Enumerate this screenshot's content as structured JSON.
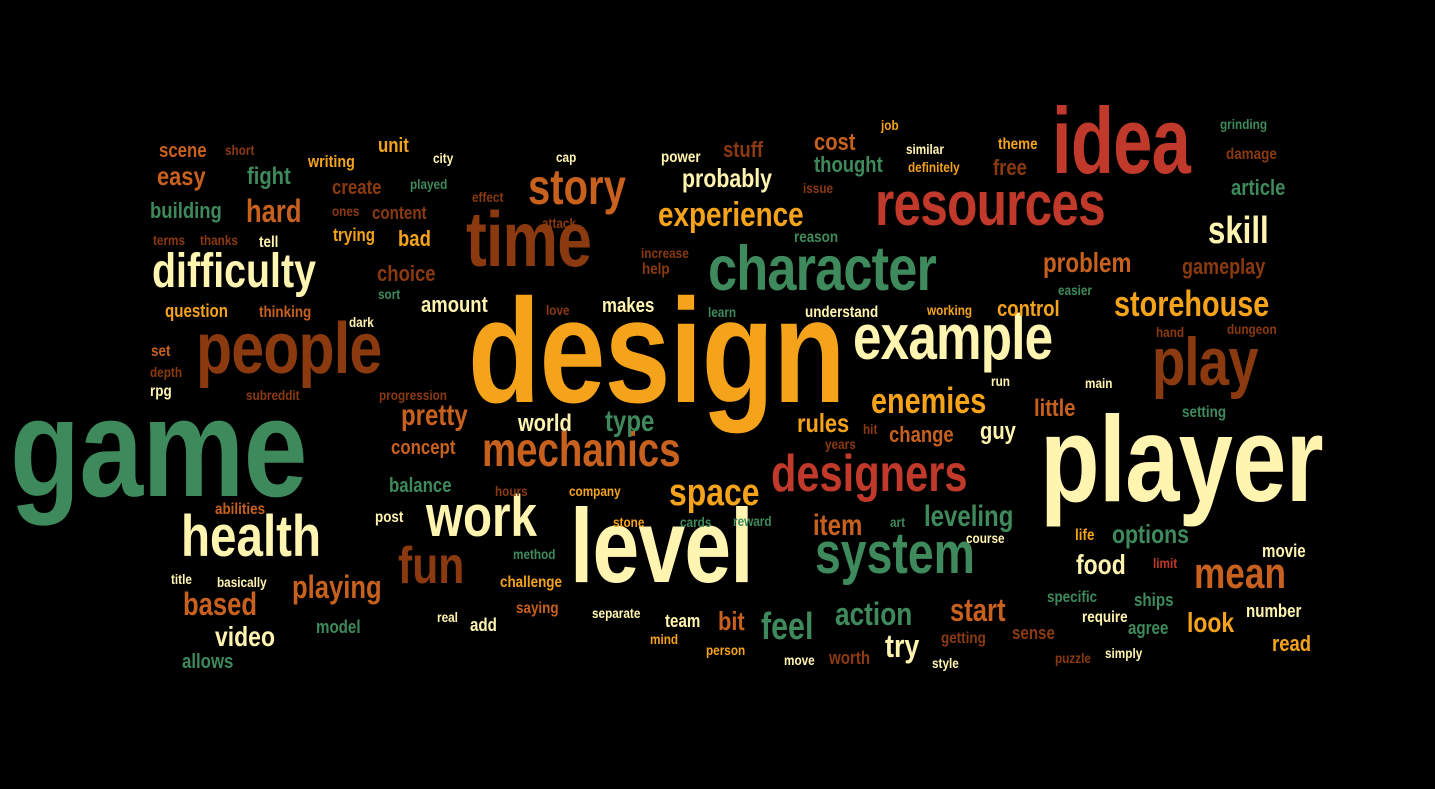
{
  "colors": {
    "background": "#000000",
    "cream": "#FFF4B0",
    "orange": "#F5A31A",
    "red": "#C0392B",
    "brown": "#8B3A10",
    "green": "#3F8A5C",
    "rust": "#C8601E"
  },
  "words": [
    {
      "text": "game",
      "color": "green"
    },
    {
      "text": "design",
      "color": "orange"
    },
    {
      "text": "player",
      "color": "cream"
    },
    {
      "text": "level",
      "color": "cream"
    },
    {
      "text": "idea",
      "color": "red"
    },
    {
      "text": "people",
      "color": "brown"
    },
    {
      "text": "time",
      "color": "brown"
    },
    {
      "text": "character",
      "color": "green"
    },
    {
      "text": "resources",
      "color": "red"
    },
    {
      "text": "example",
      "color": "cream"
    },
    {
      "text": "play",
      "color": "brown"
    },
    {
      "text": "system",
      "color": "green"
    },
    {
      "text": "work",
      "color": "cream"
    },
    {
      "text": "health",
      "color": "cream"
    },
    {
      "text": "difficulty",
      "color": "cream"
    },
    {
      "text": "mechanics",
      "color": "rust"
    },
    {
      "text": "designers",
      "color": "red"
    },
    {
      "text": "story",
      "color": "rust"
    },
    {
      "text": "fun",
      "color": "brown"
    },
    {
      "text": "space",
      "color": "orange"
    },
    {
      "text": "mean",
      "color": "rust"
    },
    {
      "text": "storehouse",
      "color": "orange"
    },
    {
      "text": "experience",
      "color": "orange"
    },
    {
      "text": "enemies",
      "color": "orange"
    },
    {
      "text": "skill",
      "color": "cream"
    },
    {
      "text": "based",
      "color": "rust"
    },
    {
      "text": "playing",
      "color": "rust"
    },
    {
      "text": "feel",
      "color": "green"
    },
    {
      "text": "action",
      "color": "green"
    },
    {
      "text": "start",
      "color": "rust"
    },
    {
      "text": "problem",
      "color": "rust"
    },
    {
      "text": "video",
      "color": "cream"
    },
    {
      "text": "food",
      "color": "cream"
    },
    {
      "text": "hard",
      "color": "rust"
    },
    {
      "text": "pretty",
      "color": "rust"
    },
    {
      "text": "leveling",
      "color": "green"
    },
    {
      "text": "item",
      "color": "rust"
    },
    {
      "text": "probably",
      "color": "cream"
    },
    {
      "text": "try",
      "color": "cream"
    },
    {
      "text": "look",
      "color": "orange"
    },
    {
      "text": "options",
      "color": "green"
    },
    {
      "text": "little",
      "color": "rust"
    },
    {
      "text": "type",
      "color": "green"
    },
    {
      "text": "world",
      "color": "cream"
    },
    {
      "text": "rules",
      "color": "orange"
    },
    {
      "text": "cost",
      "color": "rust"
    },
    {
      "text": "easy",
      "color": "rust"
    },
    {
      "text": "building",
      "color": "green"
    },
    {
      "text": "fight",
      "color": "green"
    },
    {
      "text": "gameplay",
      "color": "brown"
    },
    {
      "text": "article",
      "color": "green"
    },
    {
      "text": "thought",
      "color": "green"
    },
    {
      "text": "bit",
      "color": "rust"
    },
    {
      "text": "change",
      "color": "rust"
    },
    {
      "text": "control",
      "color": "orange"
    },
    {
      "text": "guy",
      "color": "cream"
    },
    {
      "text": "makes",
      "color": "cream"
    },
    {
      "text": "amount",
      "color": "cream"
    },
    {
      "text": "choice",
      "color": "brown"
    },
    {
      "text": "bad",
      "color": "orange"
    },
    {
      "text": "create",
      "color": "brown"
    },
    {
      "text": "concept",
      "color": "rust"
    },
    {
      "text": "unit",
      "color": "orange"
    },
    {
      "text": "scene",
      "color": "rust"
    },
    {
      "text": "writing",
      "color": "orange"
    },
    {
      "text": "stuff",
      "color": "brown"
    },
    {
      "text": "free",
      "color": "brown"
    },
    {
      "text": "theme",
      "color": "orange"
    },
    {
      "text": "read",
      "color": "orange"
    },
    {
      "text": "movie",
      "color": "cream"
    },
    {
      "text": "balance",
      "color": "green"
    },
    {
      "text": "question",
      "color": "orange"
    },
    {
      "text": "content",
      "color": "brown"
    },
    {
      "text": "trying",
      "color": "orange"
    },
    {
      "text": "allows",
      "color": "green"
    },
    {
      "text": "model",
      "color": "green"
    },
    {
      "text": "add",
      "color": "cream"
    },
    {
      "text": "team",
      "color": "cream"
    },
    {
      "text": "worth",
      "color": "brown"
    },
    {
      "text": "life",
      "color": "orange"
    },
    {
      "text": "ships",
      "color": "green"
    },
    {
      "text": "agree",
      "color": "green"
    },
    {
      "text": "sense",
      "color": "brown"
    },
    {
      "text": "number",
      "color": "cream"
    },
    {
      "text": "reason",
      "color": "green"
    },
    {
      "text": "help",
      "color": "brown"
    },
    {
      "text": "power",
      "color": "cream"
    },
    {
      "text": "understand",
      "color": "cream"
    },
    {
      "text": "challenge",
      "color": "orange"
    },
    {
      "text": "saying",
      "color": "rust"
    },
    {
      "text": "thinking",
      "color": "rust"
    },
    {
      "text": "post",
      "color": "cream"
    },
    {
      "text": "tell",
      "color": "cream"
    },
    {
      "text": "set",
      "color": "rust"
    },
    {
      "text": "rpg",
      "color": "cream"
    },
    {
      "text": "abilities",
      "color": "rust"
    },
    {
      "text": "getting",
      "color": "brown"
    },
    {
      "text": "specific",
      "color": "green"
    },
    {
      "text": "require",
      "color": "cream"
    },
    {
      "text": "setting",
      "color": "green"
    },
    {
      "text": "grinding",
      "color": "green"
    },
    {
      "text": "damage",
      "color": "brown"
    },
    {
      "text": "hand",
      "color": "brown"
    },
    {
      "text": "dungeon",
      "color": "brown"
    },
    {
      "text": "easier",
      "color": "green"
    },
    {
      "text": "learn",
      "color": "green"
    },
    {
      "text": "love",
      "color": "brown"
    },
    {
      "text": "method",
      "color": "green"
    },
    {
      "text": "played",
      "color": "green"
    },
    {
      "text": "sort",
      "color": "green"
    },
    {
      "text": "short",
      "color": "brown"
    },
    {
      "text": "job",
      "color": "orange"
    },
    {
      "text": "city",
      "color": "cream"
    },
    {
      "text": "cap",
      "color": "cream"
    },
    {
      "text": "similar",
      "color": "cream"
    },
    {
      "text": "definitely",
      "color": "orange"
    },
    {
      "text": "issue",
      "color": "brown"
    },
    {
      "text": "effect",
      "color": "brown"
    },
    {
      "text": "ones",
      "color": "brown"
    },
    {
      "text": "attack",
      "color": "brown"
    },
    {
      "text": "terms",
      "color": "brown"
    },
    {
      "text": "thanks",
      "color": "brown"
    },
    {
      "text": "increase",
      "color": "brown"
    },
    {
      "text": "working",
      "color": "orange"
    },
    {
      "text": "dark",
      "color": "cream"
    },
    {
      "text": "depth",
      "color": "brown"
    },
    {
      "text": "subreddit",
      "color": "brown"
    },
    {
      "text": "progression",
      "color": "brown"
    },
    {
      "text": "run",
      "color": "cream"
    },
    {
      "text": "main",
      "color": "cream"
    },
    {
      "text": "hit",
      "color": "brown"
    },
    {
      "text": "years",
      "color": "brown"
    },
    {
      "text": "hours",
      "color": "brown"
    },
    {
      "text": "company",
      "color": "orange"
    },
    {
      "text": "stone",
      "color": "orange"
    },
    {
      "text": "cards",
      "color": "green"
    },
    {
      "text": "reward",
      "color": "green"
    },
    {
      "text": "art",
      "color": "green"
    },
    {
      "text": "course",
      "color": "cream"
    },
    {
      "text": "limit",
      "color": "red"
    },
    {
      "text": "title",
      "color": "cream"
    },
    {
      "text": "basically",
      "color": "cream"
    },
    {
      "text": "real",
      "color": "cream"
    },
    {
      "text": "separate",
      "color": "cream"
    },
    {
      "text": "mind",
      "color": "orange"
    },
    {
      "text": "person",
      "color": "orange"
    },
    {
      "text": "move",
      "color": "cream"
    },
    {
      "text": "style",
      "color": "cream"
    },
    {
      "text": "puzzle",
      "color": "brown"
    },
    {
      "text": "simply",
      "color": "cream"
    }
  ]
}
